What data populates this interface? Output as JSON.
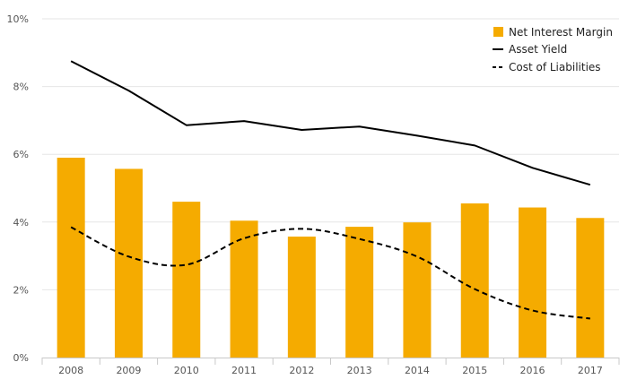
{
  "chart_data": {
    "type": "bar",
    "categories": [
      "2008",
      "2009",
      "2010",
      "2011",
      "2012",
      "2013",
      "2014",
      "2015",
      "2016",
      "2017"
    ],
    "series": [
      {
        "name": "Net Interest Margin",
        "kind": "bar",
        "color": "#f5ab00",
        "values": [
          5.9,
          5.57,
          4.6,
          4.04,
          3.57,
          3.86,
          3.99,
          4.55,
          4.43,
          4.12
        ]
      },
      {
        "name": "Asset Yield",
        "kind": "line",
        "style": "solid",
        "color": "#000000",
        "values": [
          8.75,
          7.88,
          6.86,
          6.98,
          6.72,
          6.82,
          6.55,
          6.26,
          5.6,
          5.1
        ]
      },
      {
        "name": "Cost of Liabilities",
        "kind": "line",
        "style": "dashed",
        "color": "#000000",
        "values": [
          3.85,
          2.98,
          2.74,
          3.52,
          3.8,
          3.5,
          2.98,
          2.02,
          1.39,
          1.15
        ]
      }
    ],
    "yticks": [
      "0%",
      "2%",
      "4%",
      "6%",
      "8%",
      "10%"
    ],
    "ylim": [
      0,
      10
    ],
    "grid": true,
    "legend": "top-right",
    "title": "",
    "xlabel": "",
    "ylabel": ""
  }
}
